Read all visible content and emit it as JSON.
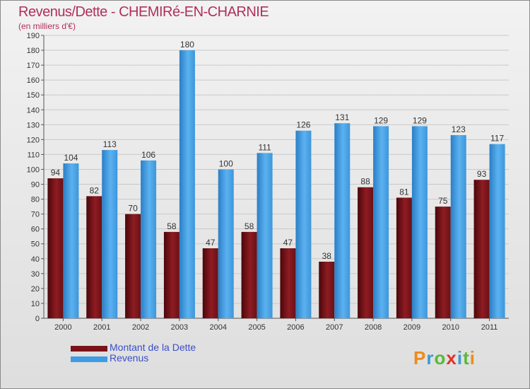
{
  "chart_data": {
    "type": "bar",
    "title": "Revenus/Dette - CHEMIRé-EN-CHARNIE",
    "subtitle": "(en milliers d'€)",
    "categories": [
      "2000",
      "2001",
      "2002",
      "2003",
      "2004",
      "2005",
      "2006",
      "2007",
      "2008",
      "2009",
      "2010",
      "2011"
    ],
    "series": [
      {
        "name": "Montant de la Dette",
        "color": "#7a1218",
        "values": [
          94,
          82,
          70,
          58,
          47,
          58,
          47,
          38,
          88,
          81,
          75,
          93
        ]
      },
      {
        "name": "Revenus",
        "color": "#3f9be3",
        "values": [
          104,
          113,
          106,
          180,
          100,
          111,
          126,
          131,
          129,
          129,
          123,
          117
        ]
      }
    ],
    "ylim": [
      0,
      190
    ],
    "yticks": [
      0,
      10,
      20,
      30,
      40,
      50,
      60,
      70,
      80,
      90,
      100,
      110,
      120,
      130,
      140,
      150,
      160,
      170,
      180,
      190
    ],
    "grid": true,
    "legend": "bottom-left"
  },
  "logo_text": "Proxiti"
}
